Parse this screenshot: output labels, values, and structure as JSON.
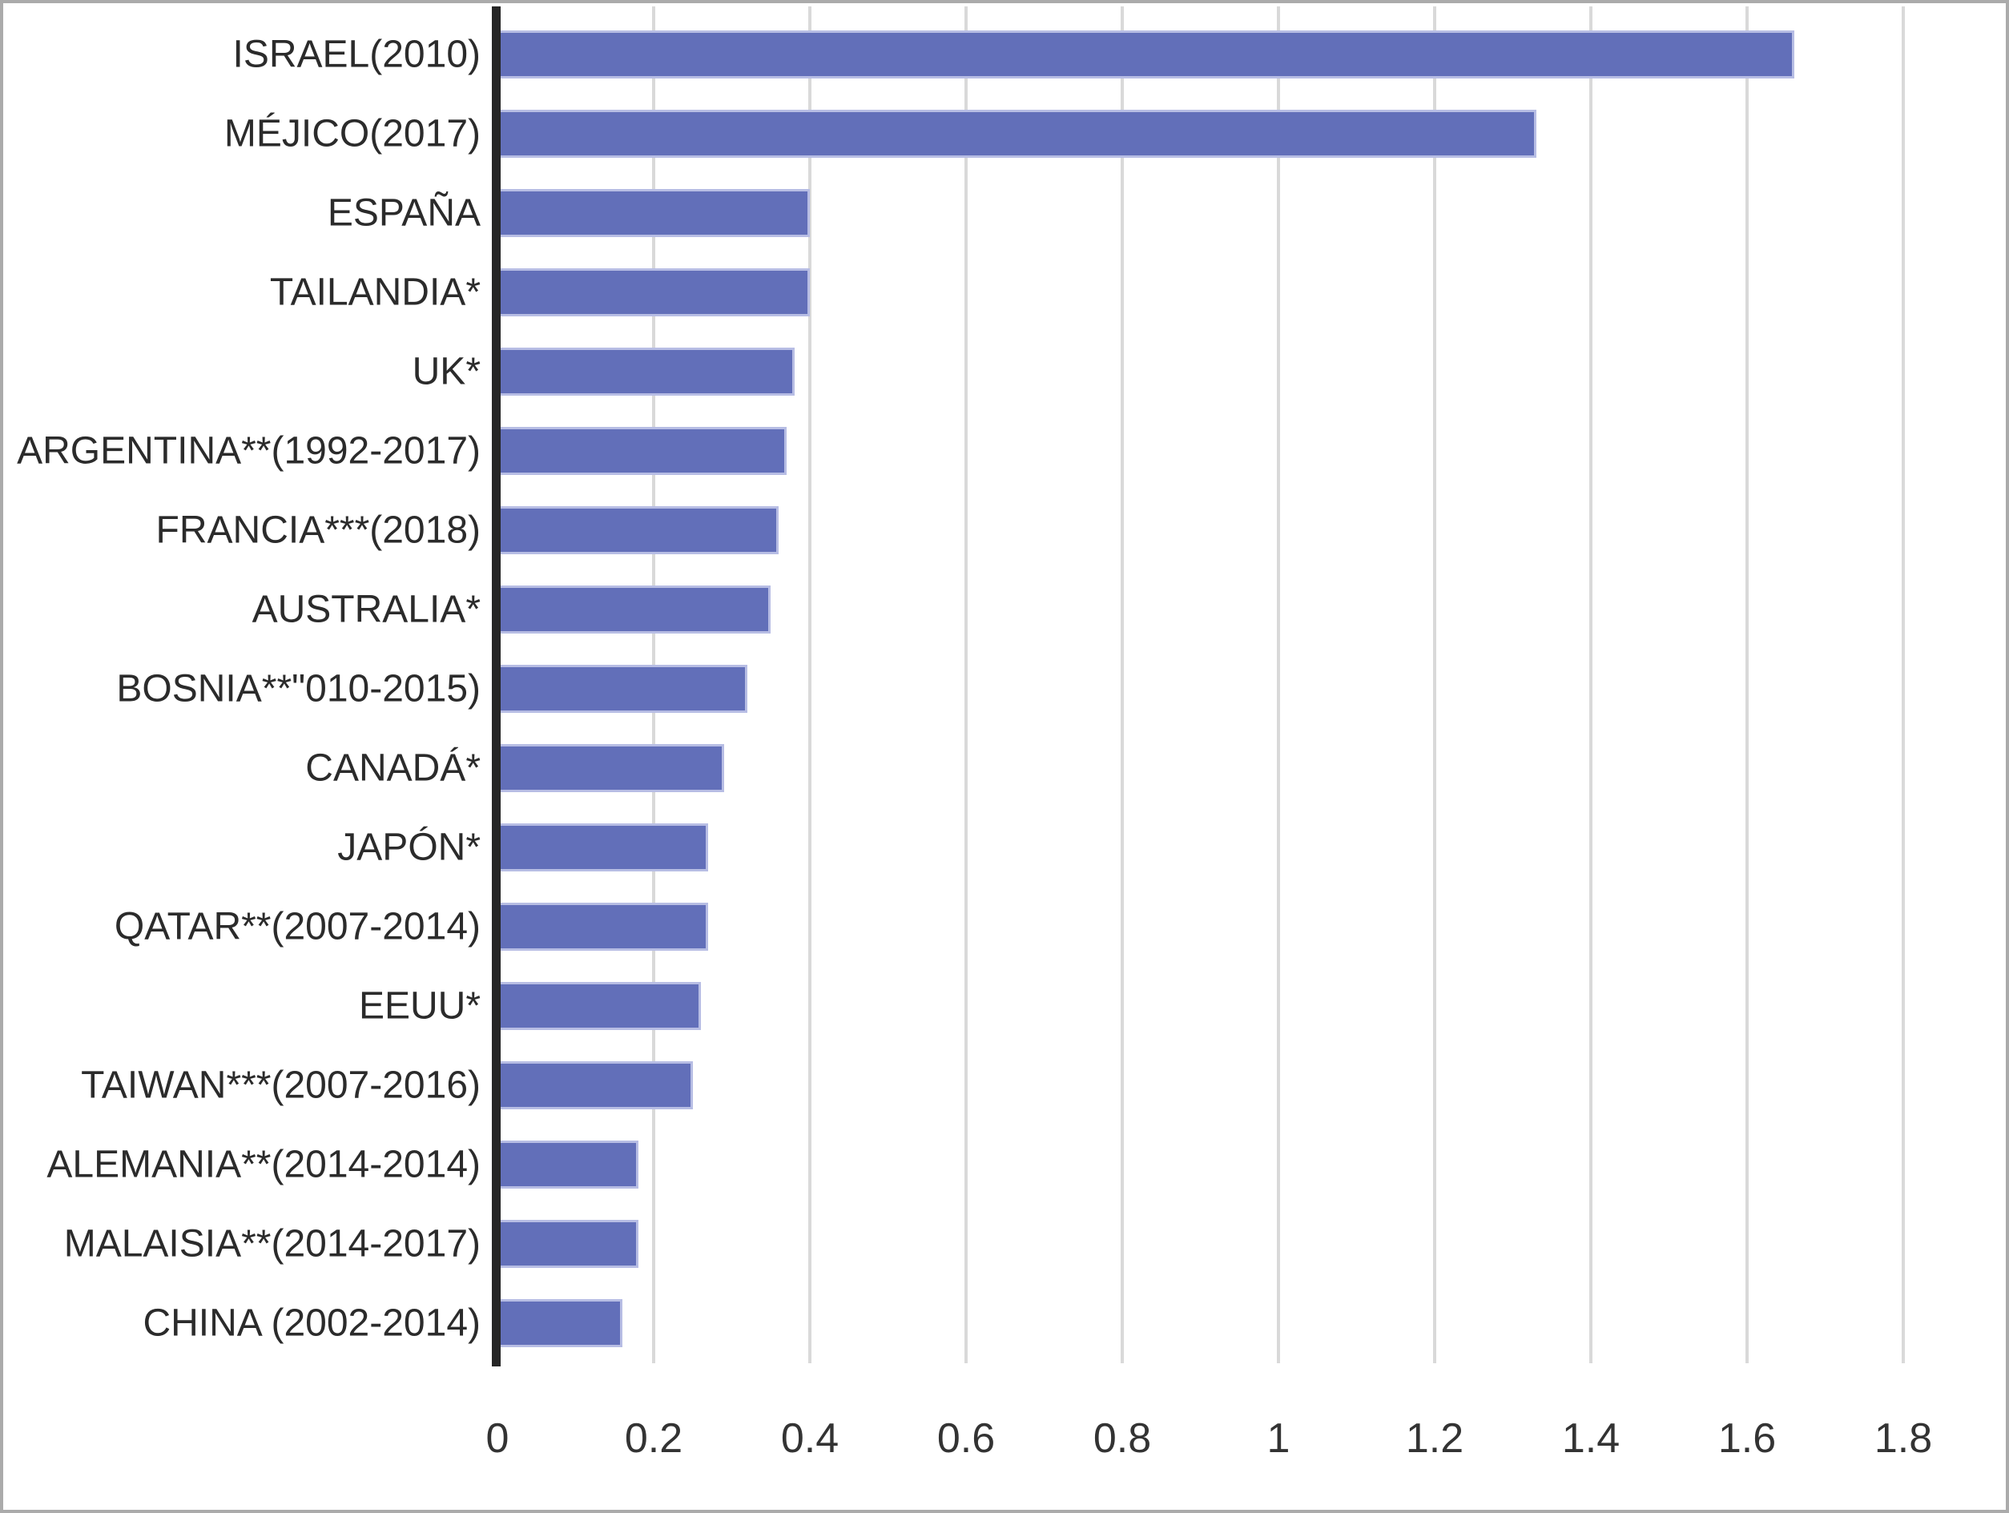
{
  "chart_data": {
    "type": "bar",
    "orientation": "horizontal",
    "title": "",
    "xlabel": "",
    "ylabel": "",
    "categories": [
      "ISRAEL(2010)",
      "MÉJICO(2017)",
      "ESPAÑA",
      "TAILANDIA*",
      "UK*",
      "ARGENTINA**(1992-2017)",
      "FRANCIA***(2018)",
      "AUSTRALIA*",
      "BOSNIA**\"010-2015)",
      "CANADÁ*",
      "JAPÓN*",
      "QATAR**(2007-2014)",
      "EEUU*",
      "TAIWAN***(2007-2016)",
      "ALEMANIA**(2014-2014)",
      "MALAISIA**(2014-2017)",
      "CHINA (2002-2014)"
    ],
    "values": [
      1.66,
      1.33,
      0.4,
      0.4,
      0.38,
      0.37,
      0.36,
      0.35,
      0.32,
      0.29,
      0.27,
      0.27,
      0.26,
      0.25,
      0.18,
      0.18,
      0.16
    ],
    "x_ticks": [
      "0",
      "0.2",
      "0.4",
      "0.6",
      "0.8",
      "1",
      "1.2",
      "1.4",
      "1.6",
      "1.8"
    ],
    "xlim": [
      0,
      1.8
    ],
    "grid": true,
    "legend": false,
    "bar_color": "#626FB9",
    "bar_border_color": "#B7BDE4",
    "gridline_color": "#D9D9D9",
    "axis_line_color": "#262626",
    "frame_border_color": "#ABABAB",
    "text_color": "#2B2B2B"
  }
}
